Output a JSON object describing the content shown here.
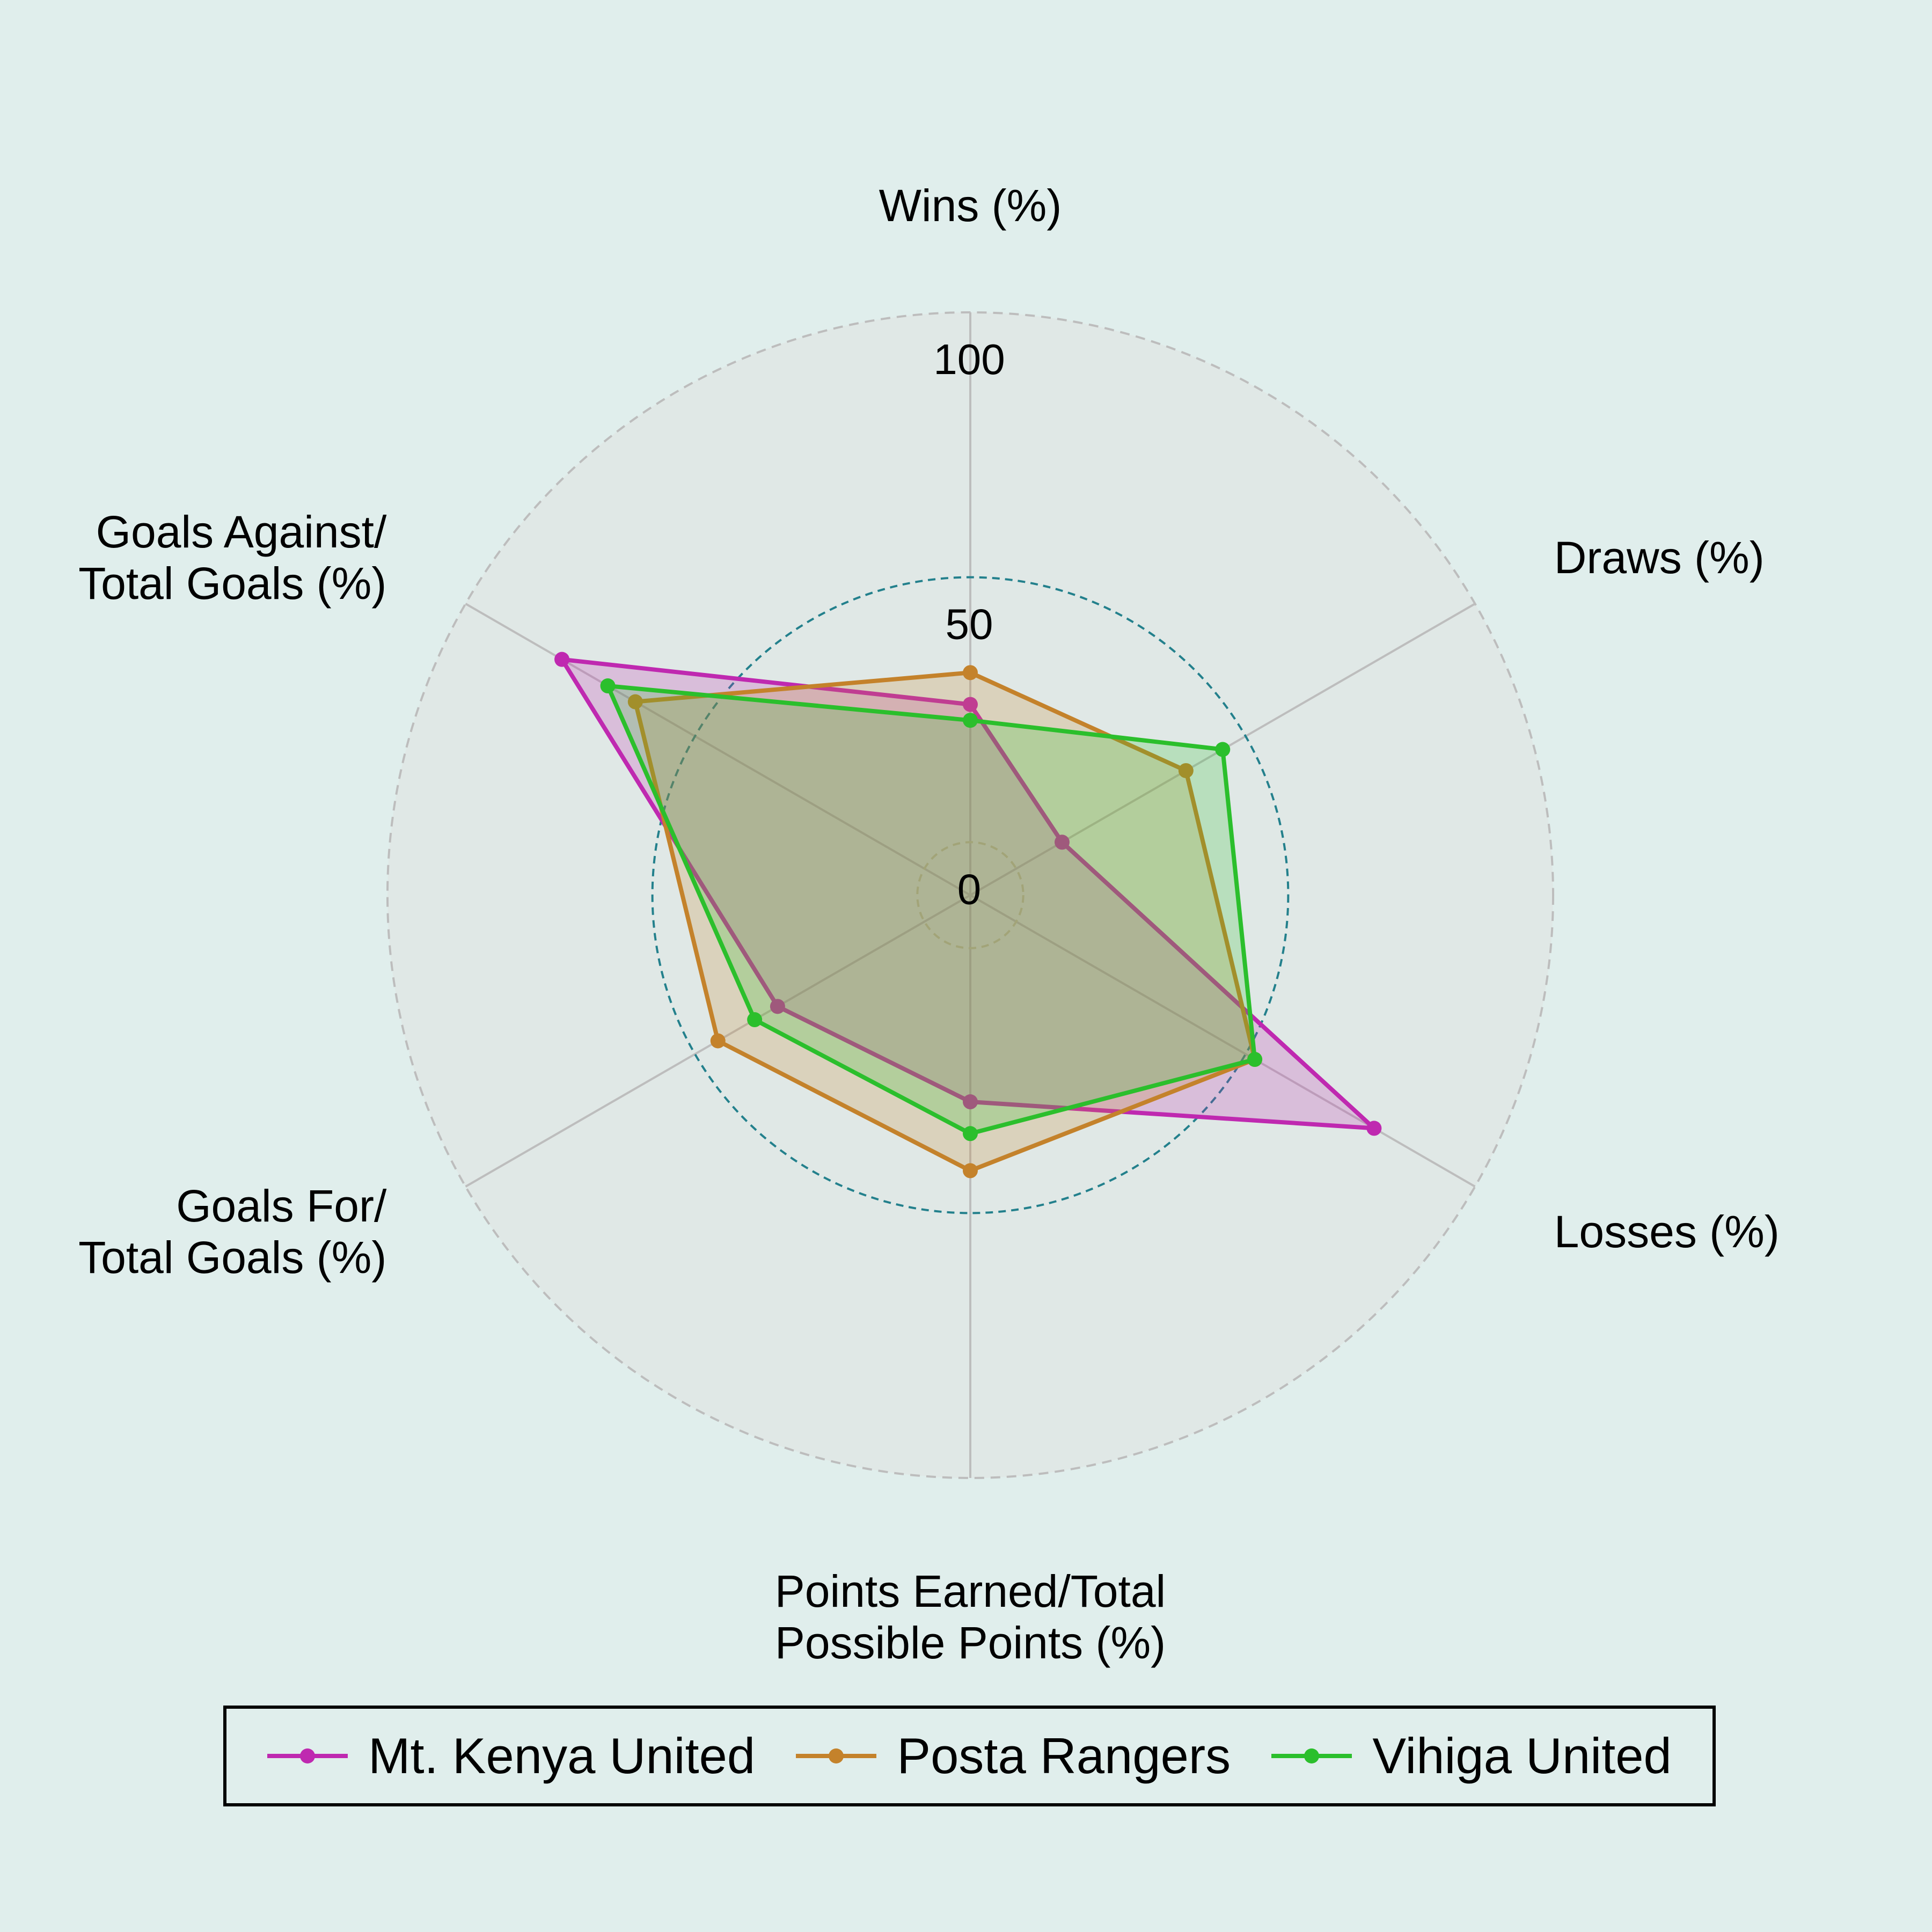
{
  "chart_data": {
    "type": "radar",
    "axes": [
      "Wins (%)",
      "Draws (%)",
      "Losses (%)",
      "Points Earned/Total Possible Points (%)",
      "Goals For/ Total Goals (%)",
      "Goals Against/ Total Goals (%)"
    ],
    "axis_label_lines": [
      [
        "Wins (%)"
      ],
      [
        "Draws (%)"
      ],
      [
        "Losses (%)"
      ],
      [
        "Points Earned/Total",
        "Possible Points (%)"
      ],
      [
        "Goals For/",
        "Total Goals (%)"
      ],
      [
        "Goals Against/",
        "Total Goals (%)"
      ]
    ],
    "rings": [
      0,
      50,
      100
    ],
    "tick_labels": [
      "0",
      "50",
      "100"
    ],
    "rmin": -10,
    "rmax": 100,
    "series": [
      {
        "name": "Mt. Kenya United",
        "color": "#bf29b0",
        "values": [
          26,
          10,
          78,
          29,
          32,
          79
        ]
      },
      {
        "name": "Posta Rangers",
        "color": "#c4822b",
        "values": [
          32,
          37,
          52,
          42,
          45,
          63
        ]
      },
      {
        "name": "Vihiga United",
        "color": "#2bbf2c",
        "values": [
          23,
          45,
          52,
          35,
          37,
          69
        ]
      }
    ],
    "legend_position": "bottom",
    "grid": true
  }
}
